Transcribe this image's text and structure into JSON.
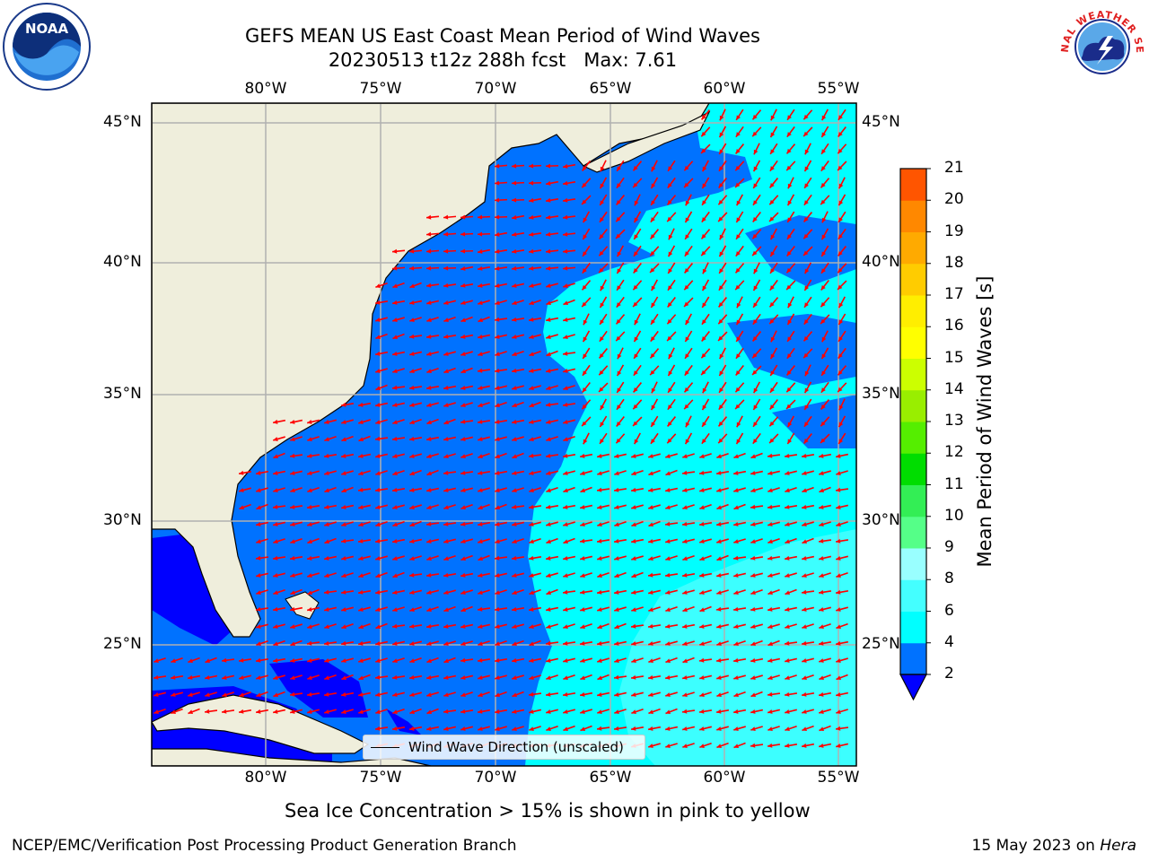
{
  "title": {
    "line1": "GEFS MEAN US East Coast Mean Period of Wind Waves",
    "line2": "20230513 t12z 288h fcst   Max: 7.61"
  },
  "logos": {
    "left": "NOAA",
    "right": "NATIONAL WEATHER SERVICE"
  },
  "axes": {
    "lon_labels": [
      "80°W",
      "75°W",
      "70°W",
      "65°W",
      "60°W",
      "55°W"
    ],
    "lat_labels": [
      "45°N",
      "40°N",
      "35°N",
      "30°N",
      "25°N"
    ]
  },
  "legend": {
    "label": "Wind Wave Direction (unscaled)"
  },
  "colorbar": {
    "title": "Mean Period of Wind Waves [s]",
    "ticks": [
      "2",
      "4",
      "6",
      "8",
      "9",
      "10",
      "11",
      "12",
      "13",
      "14",
      "15",
      "16",
      "17",
      "18",
      "19",
      "20",
      "21"
    ],
    "colors": [
      "#0072ff",
      "#00ffff",
      "#44ffff",
      "#99ffff",
      "#55ff88",
      "#33ee55",
      "#00dd00",
      "#55ee00",
      "#99ee00",
      "#ccff00",
      "#ffff00",
      "#ffee00",
      "#ffcc00",
      "#ffaa00",
      "#ff8800",
      "#ff5500",
      "#ff2200",
      "#ff0000"
    ],
    "under_color": "#0000ff"
  },
  "colors": {
    "land": "#efeedc",
    "arrow": "#ff0000",
    "grid": "#b0b0b0"
  },
  "note": "Sea Ice Concentration > 15% is shown in pink to yellow",
  "footer": {
    "left": "NCEP/EMC/Verification Post Processing Product Generation Branch",
    "right_date": "15 May 2023 on ",
    "right_host": "Hera"
  }
}
